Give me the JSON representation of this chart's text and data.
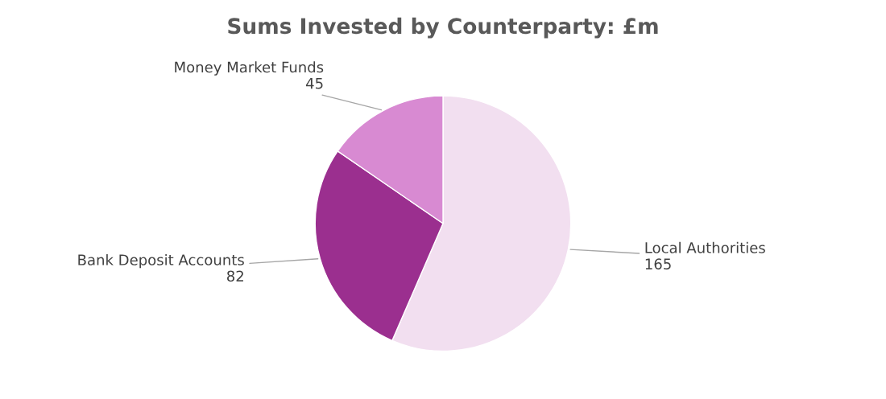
{
  "chart_data": {
    "type": "pie",
    "title": "Sums Invested by Counterparty: £m",
    "categories": [
      "Local Authorities",
      "Bank Deposit Accounts",
      "Money Market Funds"
    ],
    "values": [
      165,
      82,
      45
    ],
    "colors": [
      "#f2dff0",
      "#9b2f8f",
      "#d88ad2"
    ],
    "data_labels": true
  }
}
